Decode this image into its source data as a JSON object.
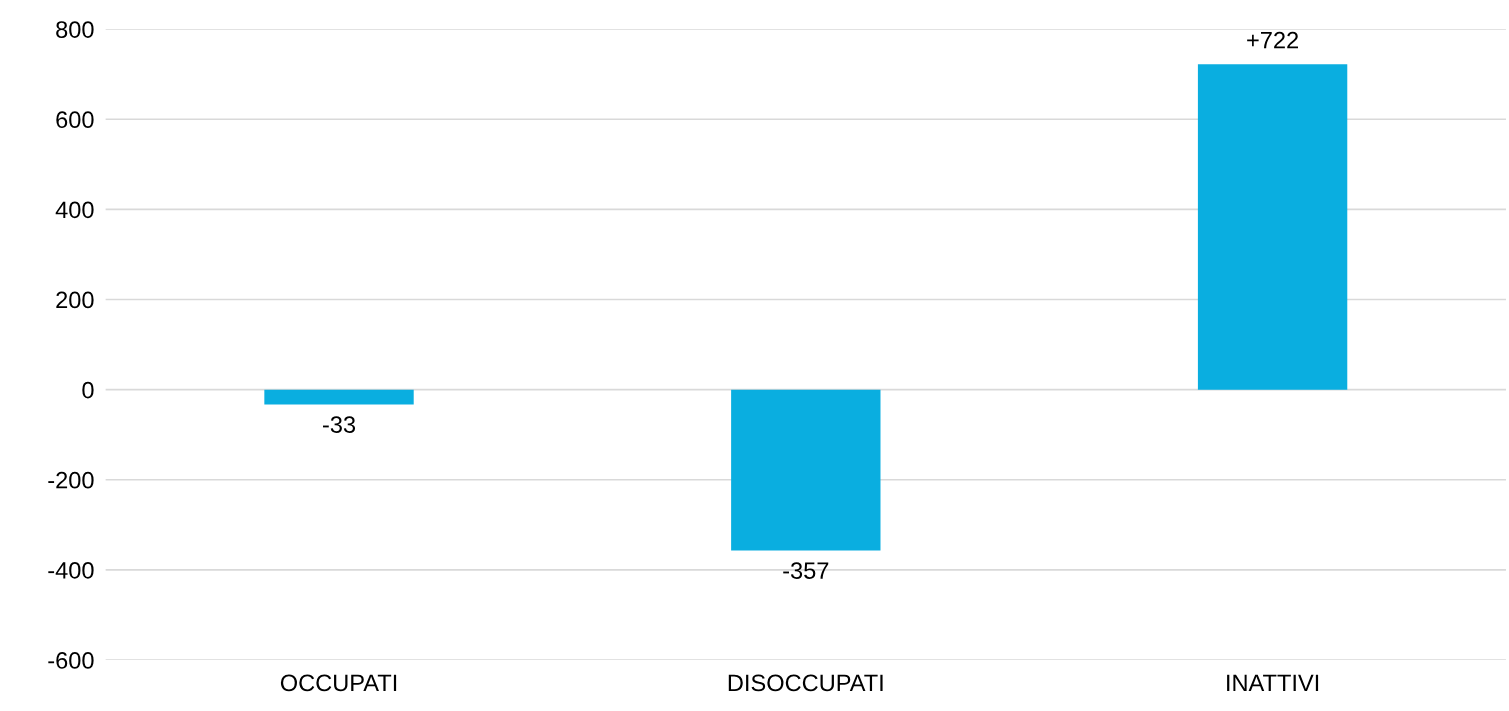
{
  "chart_data": {
    "type": "bar",
    "categories": [
      "OCCUPATI",
      "DISOCCUPATI",
      "INATTIVI"
    ],
    "values": [
      -33,
      -357,
      722
    ],
    "value_labels": [
      "-33",
      "-357",
      "+722"
    ],
    "color": "#0aaee0",
    "ylim": [
      -600,
      800
    ],
    "yticks": [
      -600,
      -400,
      -200,
      0,
      200,
      400,
      600,
      800
    ],
    "grid": "y",
    "legend": false
  }
}
